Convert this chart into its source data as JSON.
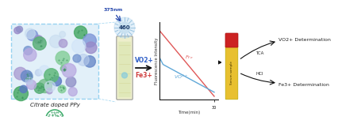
{
  "left_box_color": "#ddeef8",
  "left_box_border": "#88ccee",
  "title_text": "Citrate doped PPy",
  "graph_line_red": "#e05858",
  "graph_line_blue": "#60a8d8",
  "excitation": "375nm",
  "emission": "460",
  "xlabel": "Time(min)",
  "ylabel": "Fluorescence Intensity",
  "det_vo2": "VO2+ Determination",
  "det_fe3": "Fe3+ Determination",
  "tca_label": "TCA",
  "hcl_label": "HCl",
  "sample_label": "Serum sample",
  "vo2_label": "VO2+",
  "fe3_label": "Fe3+",
  "arrow_color": "#111111",
  "blue_label_color": "#3060c8",
  "red_label_color": "#d04040",
  "starburst_color": "#a0b8d8",
  "vial_fill": "#e8e8c8",
  "vial_liquid_color": "#d8e8c0",
  "tube_cap_color": "#cc2222",
  "tube_body_color": "#e8c030",
  "ball_edge_color": "#3aaa68",
  "ball_dot_color": "#2a9a58"
}
